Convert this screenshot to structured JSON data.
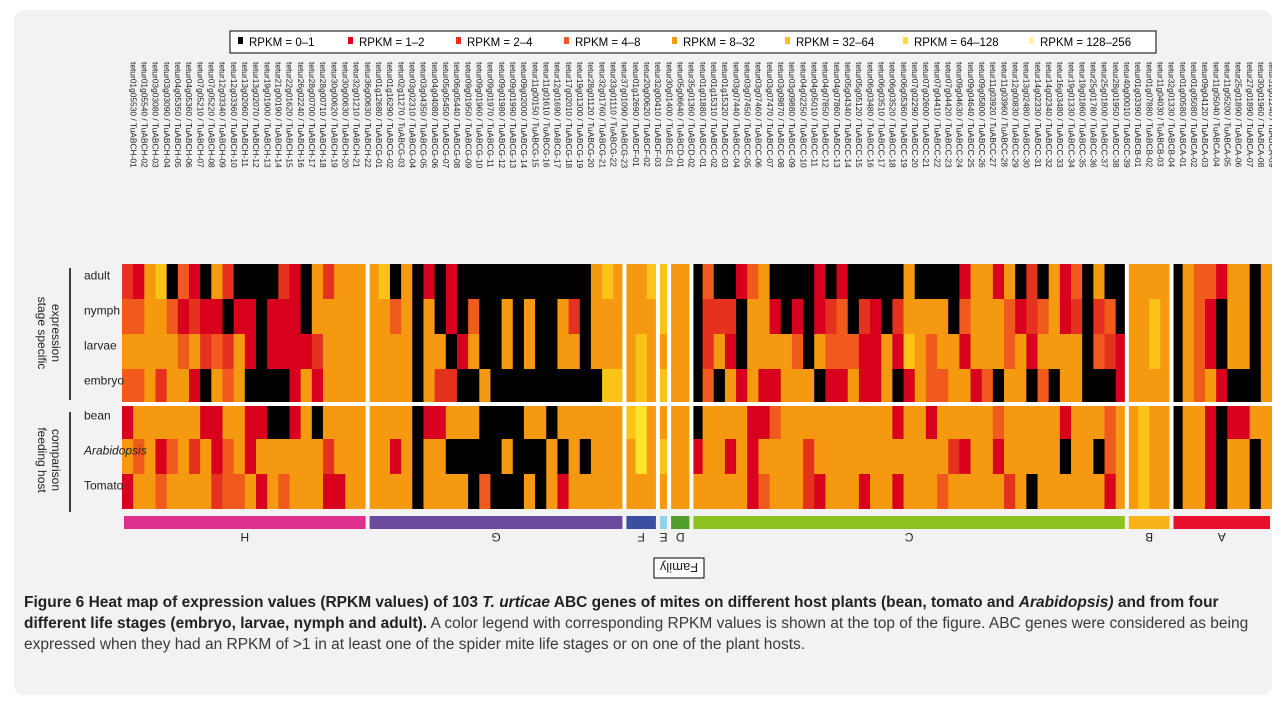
{
  "chart_data": {
    "type": "heatmap",
    "title": "",
    "legend": [
      {
        "label": "RPKM = 0–1",
        "color": "#000000"
      },
      {
        "label": "RPKM = 1–2",
        "color": "#d8001c"
      },
      {
        "label": "RPKM = 2–4",
        "color": "#e5321e"
      },
      {
        "label": "RPKM = 4–8",
        "color": "#f05a1c"
      },
      {
        "label": "RPKM = 8–32",
        "color": "#f59a10"
      },
      {
        "label": "RPKM = 32–64",
        "color": "#fbc318"
      },
      {
        "label": "RPKM = 64–128",
        "color": "#fbe329"
      },
      {
        "label": "RPKM = 128–256",
        "color": "#fff3a6"
      }
    ],
    "row_groups": [
      {
        "label_lines": [
          "stage specific",
          "expression"
        ],
        "rows": [
          "adult",
          "nymph",
          "larvae",
          "embryo"
        ]
      },
      {
        "label_lines": [
          "feeding host",
          "comparison"
        ],
        "rows": [
          "bean",
          "Arabidopsis",
          "Tomato"
        ]
      }
    ],
    "family_label": "Family",
    "families": [
      {
        "name": "H",
        "color": "#dd2f8c",
        "genes": [
          "tetur01g05530 / TuABCH-01",
          "tetur01g05540 / TuABCH-02",
          "tetur03g03080 / TuABCH-03",
          "tetur03g03090 / TuABCH-04",
          "tetur04g05350 / TuABCH-05",
          "tetur04g05360 / TuABCH-06",
          "tetur07g05210 / TuABCH-07",
          "tetur07g05220 / TuABCH-08",
          "tetur12g03340 / TuABCH-09",
          "tetur12g03360 / TuABCH-10",
          "tetur13g02060 / TuABCH-11",
          "tetur13g02070 / TuABCH-12",
          "tetur19g01900 / TuABCH-13",
          "tetur21g00190 / TuABCH-14",
          "tetur22g01620 / TuABCH-15",
          "tetur26g02240 / TuABCH-16",
          "tetur28g00700 / TuABCH-17",
          "tetur28g00710 / TuABCH-18",
          "tetur30g00620 / TuABCH-19",
          "tetur30g00630 / TuABCH-20",
          "tetur32g01210 / TuABCH-21",
          "tetur36g00630 / TuABCH-22"
        ]
      },
      {
        "name": "G",
        "color": "#6b4a9d",
        "genes": [
          "tetur01g12680 / TuABCG-01",
          "tetur01g16290 / TuABCG-02",
          "tetur02g11270 / TuABCG-03",
          "tetur03g02310 / TuABCG-04",
          "tetur03g04350 / TuABCG-05",
          "tetur04g04080 / TuABCG-06",
          "tetur05g05450 / TuABCG-07",
          "tetur06g05440 / TuABCG-08",
          "tetur09g01950 / TuABCG-09",
          "tetur09g01960 / TuABCG-10",
          "tetur09g01970 / TuABCG-11",
          "tetur09g01980 / TuABCG-12",
          "tetur09g01990 / TuABCG-13",
          "tetur09g02000 / TuABCG-14",
          "tetur11g00150 / TuABCG-15",
          "tetur11g01610 / TuABCG-16",
          "tetur12g01690 / TuABCG-17",
          "tetur17g02010 / TuABCG-18",
          "tetur19g01300 / TuABCG-19",
          "tetur28g01120 / TuABCG-20",
          "tetur32g01760 / TuABCG-21",
          "tetur33g01110 / TuABCG-22",
          "tetur37g01090 / TuABCG-23"
        ]
      },
      {
        "name": "F",
        "color": "#3b4ea0",
        "genes": [
          "tetur01g12690 / TuABCF-01",
          "tetur20g00620 / TuABCF-02",
          "tetur32g00410 / TuABCF-03"
        ]
      },
      {
        "name": "E",
        "color": "#8fd3ef",
        "genes": [
          "tetur30g01400 / TuABCE-01"
        ]
      },
      {
        "name": "D",
        "color": "#4f9f2a",
        "genes": [
          "tetur05g06640 / TuABCD-01",
          "tetur35g01360 / TuABCD-02"
        ]
      },
      {
        "name": "C",
        "color": "#8cc21f",
        "genes": [
          "tetur01g01880 / TuABCC-01",
          "tetur01g15310 / TuABCC-02",
          "tetur01g15320 / TuABCC-03",
          "tetur03g07440 / TuABCC-04",
          "tetur03g07450 / TuABCC-05",
          "tetur03g07460 / TuABCC-06",
          "tetur03g07470 / TuABCC-07",
          "tetur03g09870 / TuABCC-08",
          "tetur03g09880 / TuABCC-09",
          "tetur04g02250 / TuABCC-10",
          "tetur04g05010 / TuABCC-11",
          "tetur04g07850 / TuABCC-12",
          "tetur04g07860 / TuABCC-13",
          "tetur05g04340 / TuABCC-14",
          "tetur05g05120 / TuABCC-15",
          "tetur06g03480 / TuABCC-16",
          "tetur06g03510 / TuABCC-17",
          "tetur06g03520 / TuABCC-18",
          "tetur06g05360 / TuABCC-19",
          "tetur07g02290 / TuABCC-20",
          "tetur07g02600 / TuABCC-21",
          "tetur07g04410 / TuABCC-22",
          "tetur07g04420 / TuABCC-23",
          "tetur09g04630 / TuABCC-24",
          "tetur09g04640 / TuABCC-25",
          "tetur09g05800 / TuABCC-26",
          "tetur11g03920 / TuABCC-27",
          "tetur11g03960 / TuABCC-28",
          "tetur12g00830 / TuABCC-29",
          "tetur13g02480 / TuABCC-30",
          "tetur14g02330 / TuABCC-31",
          "tetur14g02340 / TuABCC-32",
          "tetur16g03480 / TuABCC-33",
          "tetur19g01330 / TuABCC-34",
          "tetur19g01860 / TuABCC-35",
          "tetur25g01780 / TuABCC-36",
          "tetur25g01800 / TuABCC-37",
          "tetur28g01950 / TuABCC-38",
          "tetur40g00010 / TuABCC-39"
        ]
      },
      {
        "name": "B",
        "color": "#f9b21a",
        "genes": [
          "tetur01g03390 / TuABCB-01",
          "tetur01g07880 / TuABCB-02",
          "tetur11g04030 / TuABCB-03",
          "tetur32g01330 / TuABCB-04"
        ]
      },
      {
        "name": "A",
        "color": "#e8112d",
        "genes": [
          "tetur01g00580 / TuABCA-01",
          "tetur01g05080 / TuABCA-02",
          "tetur09g04120 / TuABCA-03",
          "tetur11g05040 / TuABCA-04",
          "tetur11g05200 / TuABCA-05",
          "tetur25g01890 / TuABCA-06",
          "tetur27g01890 / TuABCA-07",
          "tetur30g01960 / TuABCA-08",
          "tetur31g01240 / TuABCA-09"
        ]
      }
    ],
    "values": [
      [
        2,
        1,
        4,
        5,
        0,
        3,
        1,
        0,
        4,
        2,
        0,
        0,
        0,
        0,
        2,
        1,
        0,
        4,
        2,
        4,
        4,
        4,
        4,
        5,
        0,
        4,
        0,
        1,
        0,
        1,
        0,
        0,
        0,
        0,
        0,
        0,
        0,
        0,
        0,
        0,
        0,
        0,
        4,
        5,
        4,
        4,
        4,
        5,
        5,
        4,
        4,
        0,
        3,
        0,
        0,
        1,
        3,
        4,
        0,
        0,
        0,
        0,
        1,
        0,
        1,
        0,
        0,
        0,
        0,
        0,
        4,
        0,
        0,
        0,
        0,
        1,
        4,
        4,
        1,
        4,
        0,
        2,
        0,
        4,
        1,
        3,
        0,
        4,
        0,
        0,
        4,
        4,
        4,
        4,
        0,
        4,
        3,
        3,
        1,
        4,
        4,
        0,
        4
      ],
      [
        3,
        3,
        4,
        4,
        3,
        1,
        2,
        1,
        1,
        0,
        1,
        1,
        0,
        1,
        1,
        1,
        0,
        4,
        4,
        4,
        4,
        4,
        4,
        4,
        3,
        4,
        0,
        4,
        0,
        1,
        0,
        3,
        0,
        0,
        4,
        0,
        4,
        0,
        0,
        4,
        2,
        0,
        4,
        4,
        4,
        4,
        4,
        4,
        5,
        4,
        4,
        0,
        2,
        2,
        2,
        0,
        4,
        4,
        1,
        0,
        1,
        0,
        1,
        2,
        3,
        0,
        2,
        1,
        0,
        2,
        4,
        4,
        4,
        4,
        0,
        3,
        4,
        4,
        4,
        3,
        1,
        2,
        3,
        4,
        1,
        2,
        0,
        2,
        3,
        0,
        4,
        4,
        5,
        4,
        0,
        4,
        3,
        1,
        0,
        4,
        4,
        0,
        4
      ],
      [
        4,
        4,
        4,
        4,
        4,
        3,
        4,
        2,
        3,
        2,
        4,
        1,
        0,
        1,
        1,
        1,
        1,
        2,
        4,
        4,
        4,
        4,
        4,
        4,
        4,
        4,
        0,
        4,
        4,
        0,
        1,
        4,
        0,
        0,
        4,
        0,
        4,
        0,
        0,
        4,
        4,
        0,
        4,
        4,
        4,
        4,
        5,
        4,
        4,
        4,
        4,
        0,
        2,
        4,
        1,
        0,
        4,
        4,
        4,
        4,
        3,
        0,
        4,
        3,
        3,
        3,
        1,
        1,
        4,
        1,
        5,
        4,
        3,
        4,
        4,
        1,
        4,
        4,
        4,
        3,
        4,
        1,
        4,
        4,
        4,
        4,
        0,
        3,
        2,
        1,
        4,
        4,
        5,
        4,
        0,
        4,
        3,
        1,
        0,
        4,
        4,
        0,
        4
      ],
      [
        3,
        3,
        4,
        2,
        4,
        4,
        1,
        0,
        4,
        3,
        4,
        0,
        0,
        0,
        0,
        1,
        4,
        1,
        4,
        4,
        4,
        4,
        4,
        4,
        4,
        4,
        0,
        4,
        2,
        2,
        0,
        0,
        4,
        0,
        0,
        0,
        0,
        0,
        0,
        0,
        0,
        0,
        0,
        5,
        5,
        4,
        5,
        4,
        5,
        4,
        4,
        0,
        3,
        0,
        4,
        1,
        4,
        1,
        1,
        4,
        4,
        4,
        0,
        1,
        1,
        4,
        1,
        1,
        4,
        0,
        1,
        4,
        3,
        3,
        4,
        4,
        1,
        3,
        0,
        4,
        4,
        0,
        3,
        0,
        4,
        4,
        0,
        0,
        0,
        1,
        4,
        4,
        4,
        4,
        0,
        4,
        3,
        4,
        1,
        0,
        0,
        0,
        4
      ],
      [
        1,
        4,
        4,
        4,
        4,
        4,
        4,
        1,
        1,
        4,
        4,
        1,
        1,
        0,
        0,
        1,
        4,
        0,
        4,
        4,
        4,
        4,
        4,
        4,
        4,
        4,
        0,
        1,
        1,
        4,
        4,
        4,
        0,
        0,
        0,
        0,
        4,
        4,
        0,
        4,
        4,
        4,
        4,
        4,
        4,
        5,
        6,
        4,
        4,
        4,
        4,
        0,
        4,
        4,
        4,
        4,
        1,
        1,
        3,
        4,
        4,
        4,
        4,
        4,
        4,
        4,
        4,
        4,
        4,
        1,
        4,
        4,
        1,
        4,
        4,
        4,
        4,
        4,
        3,
        4,
        4,
        4,
        4,
        4,
        1,
        4,
        4,
        4,
        3,
        4,
        4,
        5,
        4,
        4,
        0,
        4,
        4,
        1,
        0,
        1,
        1,
        4,
        4
      ],
      [
        4,
        3,
        4,
        1,
        3,
        4,
        2,
        4,
        1,
        3,
        4,
        1,
        4,
        4,
        4,
        4,
        4,
        4,
        2,
        4,
        4,
        4,
        4,
        4,
        1,
        4,
        0,
        4,
        4,
        0,
        0,
        0,
        0,
        0,
        4,
        0,
        0,
        0,
        4,
        0,
        4,
        0,
        4,
        4,
        4,
        4,
        6,
        4,
        5,
        4,
        4,
        1,
        4,
        4,
        1,
        4,
        1,
        4,
        4,
        4,
        4,
        2,
        4,
        4,
        4,
        4,
        4,
        4,
        4,
        4,
        4,
        4,
        4,
        4,
        2,
        1,
        4,
        4,
        1,
        4,
        4,
        4,
        4,
        4,
        0,
        4,
        4,
        0,
        3,
        4,
        4,
        5,
        4,
        4,
        0,
        4,
        4,
        1,
        0,
        4,
        4,
        0,
        4
      ],
      [
        1,
        4,
        4,
        3,
        4,
        4,
        4,
        4,
        2,
        3,
        3,
        4,
        1,
        4,
        3,
        4,
        4,
        4,
        1,
        1,
        4,
        4,
        4,
        4,
        4,
        4,
        0,
        4,
        4,
        4,
        4,
        0,
        3,
        0,
        0,
        0,
        4,
        0,
        4,
        1,
        4,
        4,
        4,
        4,
        4,
        4,
        4,
        4,
        4,
        4,
        4,
        4,
        4,
        4,
        4,
        4,
        1,
        3,
        4,
        4,
        4,
        2,
        1,
        4,
        4,
        4,
        1,
        4,
        4,
        1,
        4,
        4,
        4,
        3,
        4,
        4,
        4,
        4,
        4,
        2,
        4,
        0,
        4,
        4,
        4,
        4,
        4,
        4,
        1,
        4,
        4,
        5,
        4,
        4,
        0,
        4,
        4,
        1,
        0,
        4,
        4,
        0,
        4
      ]
    ]
  },
  "caption": {
    "bold_prefix": "Figure 6 Heat map of expression values (RPKM values) of 103 ",
    "bold_italic_1": "T. urticae",
    "bold_mid": " ABC genes of mites on different host plants (bean, tomato and ",
    "bold_italic_2": "Arabidopsis)",
    "bold_suffix": " and from four different life stages (embryo, larvae, nymph and adult).",
    "body": " A color legend with corresponding RPKM values is shown at the top of the figure. ABC genes were considered as being expressed when they had an RPKM of >1 in at least one of the spider mite life stages or on one of the plant hosts."
  }
}
